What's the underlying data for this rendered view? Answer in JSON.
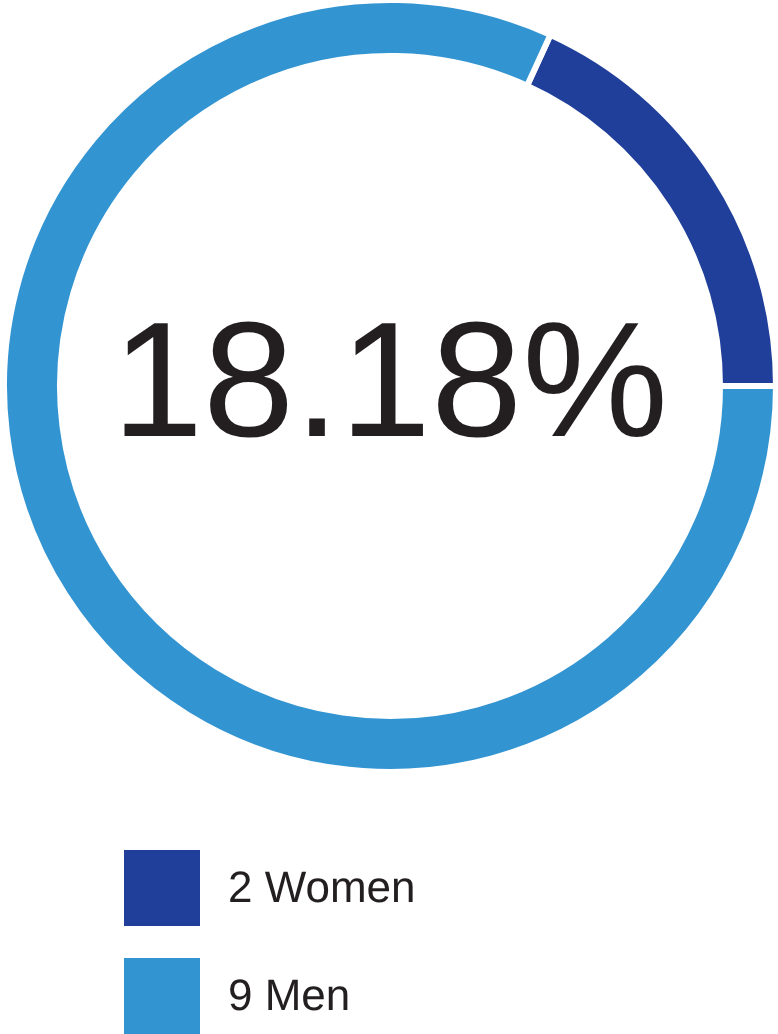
{
  "chart_data": {
    "type": "donut",
    "categories": [
      "2  Women",
      "9  Men"
    ],
    "values": [
      2,
      9
    ],
    "colors": [
      "#1f3f9a",
      "#3394d2"
    ],
    "annotations": [
      "18.18%"
    ],
    "legend": "bottom"
  }
}
